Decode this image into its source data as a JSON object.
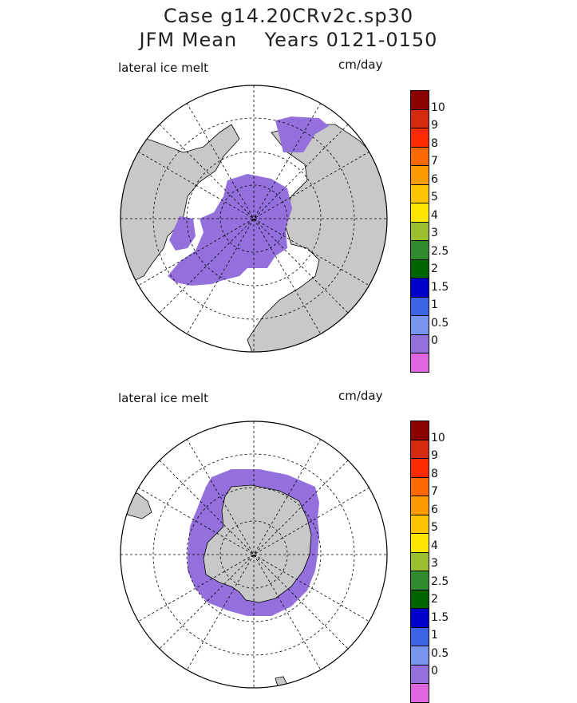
{
  "title": {
    "line1": "Case g14.20CRv2c.sp30",
    "line2": "JFM Mean    Years 0121-0150"
  },
  "panels": [
    {
      "label": "lateral ice melt",
      "units": "cm/day",
      "hemisphere": "north"
    },
    {
      "label": "lateral ice melt",
      "units": "cm/day",
      "hemisphere": "south"
    }
  ],
  "colorbar": {
    "colors": [
      "#8b0000",
      "#d42a10",
      "#ff2a00",
      "#ff6a00",
      "#ff9a00",
      "#ffc400",
      "#ffe600",
      "#9ac030",
      "#2e8b2e",
      "#006400",
      "#0000cd",
      "#3c64e6",
      "#7896f0",
      "#9370db",
      "#e066e0"
    ],
    "tick_labels": [
      "10",
      "9",
      "8",
      "7",
      "6",
      "5",
      "4",
      "3",
      "2.5",
      "2",
      "1.5",
      "1",
      "0.5",
      "0"
    ]
  },
  "colors": {
    "land": "#c8c8c8",
    "ice_melt": "#9370db",
    "ocean": "#ffffff"
  }
}
